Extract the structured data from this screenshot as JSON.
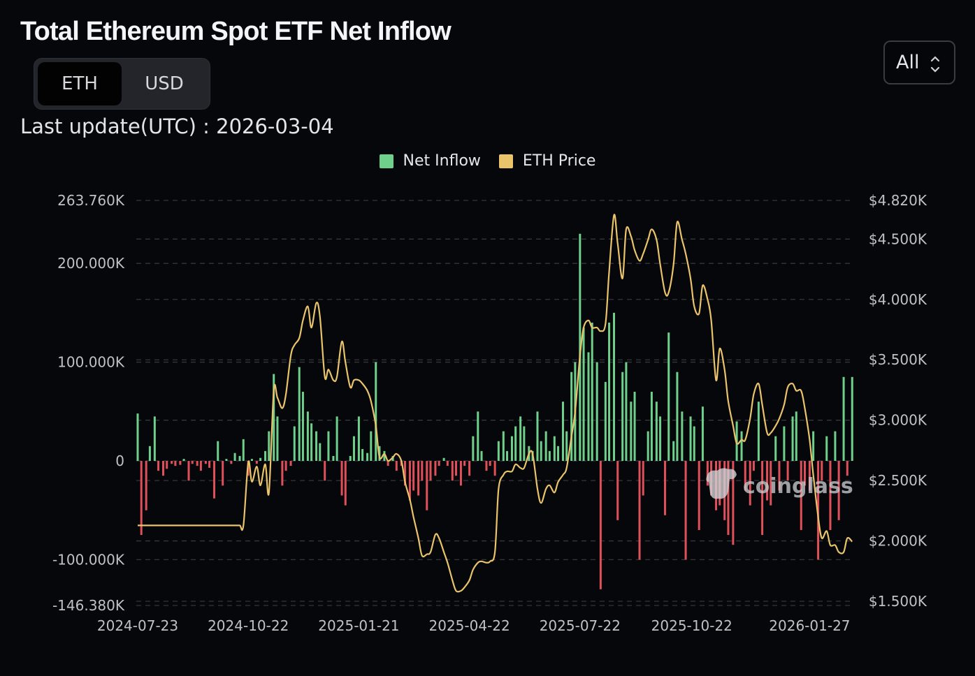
{
  "header": {
    "title": "Total Ethereum Spot ETF Net Inflow",
    "unit_toggle": [
      {
        "label": "ETH",
        "active": true
      },
      {
        "label": "USD",
        "active": false
      }
    ],
    "last_update_label": "Last update(UTC) : 2026-03-04",
    "range_select": {
      "value": "All",
      "icon": "chevron-up-down-icon"
    }
  },
  "watermark": "coinglass",
  "chart_data": {
    "type": "bar+line",
    "legend": [
      {
        "name": "Net Inflow",
        "color": "#6fd08c"
      },
      {
        "name": "ETH Price",
        "color": "#e9c46a"
      }
    ],
    "legend_position": "top",
    "negative_color": "#e0505a",
    "grid": true,
    "x_ticks": [
      "2024-07-23",
      "2024-10-22",
      "2025-01-21",
      "2025-04-22",
      "2025-07-22",
      "2025-10-22",
      "2026-01-27"
    ],
    "x_range": [
      "2024-07-23",
      "2026-03-04"
    ],
    "y_left": {
      "ticks": [
        263760,
        200000,
        100000,
        0,
        -100000,
        -146380
      ],
      "tick_labels": [
        "263.760K",
        "200.000K",
        "100.000K",
        "0",
        "-100.000K",
        "-146.380K"
      ],
      "range": [
        -146380,
        263760
      ]
    },
    "y_right": {
      "ticks": [
        4820,
        4500,
        4000,
        3500,
        3000,
        2500,
        2000,
        1500
      ],
      "tick_labels": [
        "$4.820K",
        "$4.500K",
        "$4.000K",
        "$3.500K",
        "$3.000K",
        "$2.500K",
        "$2.000K",
        "$1.500K"
      ],
      "range": [
        1500,
        4820
      ]
    },
    "dates": [
      "2024-07-23",
      "2024-07-26",
      "2024-07-30",
      "2024-08-02",
      "2024-08-06",
      "2024-08-09",
      "2024-08-13",
      "2024-08-16",
      "2024-08-20",
      "2024-08-23",
      "2024-08-27",
      "2024-08-30",
      "2024-09-03",
      "2024-09-06",
      "2024-09-10",
      "2024-09-13",
      "2024-09-17",
      "2024-09-20",
      "2024-09-24",
      "2024-09-27",
      "2024-10-01",
      "2024-10-04",
      "2024-10-08",
      "2024-10-11",
      "2024-10-15",
      "2024-10-18",
      "2024-10-22",
      "2024-10-25",
      "2024-10-29",
      "2024-11-01",
      "2024-11-05",
      "2024-11-08",
      "2024-11-12",
      "2024-11-15",
      "2024-11-19",
      "2024-11-22",
      "2024-11-26",
      "2024-11-29",
      "2024-12-03",
      "2024-12-06",
      "2024-12-10",
      "2024-12-13",
      "2024-12-17",
      "2024-12-20",
      "2024-12-24",
      "2024-12-27",
      "2024-12-31",
      "2025-01-03",
      "2025-01-07",
      "2025-01-10",
      "2025-01-14",
      "2025-01-17",
      "2025-01-21",
      "2025-01-24",
      "2025-01-28",
      "2025-01-31",
      "2025-02-04",
      "2025-02-07",
      "2025-02-11",
      "2025-02-14",
      "2025-02-18",
      "2025-02-21",
      "2025-02-25",
      "2025-02-28",
      "2025-03-04",
      "2025-03-07",
      "2025-03-11",
      "2025-03-14",
      "2025-03-18",
      "2025-03-21",
      "2025-03-25",
      "2025-03-28",
      "2025-04-01",
      "2025-04-04",
      "2025-04-08",
      "2025-04-11",
      "2025-04-15",
      "2025-04-18",
      "2025-04-22",
      "2025-04-25",
      "2025-04-29",
      "2025-05-02",
      "2025-05-06",
      "2025-05-09",
      "2025-05-13",
      "2025-05-16",
      "2025-05-20",
      "2025-05-23",
      "2025-05-27",
      "2025-05-30",
      "2025-06-03",
      "2025-06-06",
      "2025-06-10",
      "2025-06-13",
      "2025-06-17",
      "2025-06-20",
      "2025-06-24",
      "2025-06-27",
      "2025-07-01",
      "2025-07-04",
      "2025-07-08",
      "2025-07-11",
      "2025-07-15",
      "2025-07-18",
      "2025-07-22",
      "2025-07-25",
      "2025-07-29",
      "2025-08-01",
      "2025-08-05",
      "2025-08-08",
      "2025-08-12",
      "2025-08-15",
      "2025-08-19",
      "2025-08-22",
      "2025-08-26",
      "2025-08-29",
      "2025-09-02",
      "2025-09-05",
      "2025-09-09",
      "2025-09-12",
      "2025-09-16",
      "2025-09-19",
      "2025-09-23",
      "2025-09-26",
      "2025-09-30",
      "2025-10-03",
      "2025-10-07",
      "2025-10-10",
      "2025-10-14",
      "2025-10-17",
      "2025-10-21",
      "2025-10-24",
      "2025-10-28",
      "2025-10-31",
      "2025-11-04",
      "2025-11-07",
      "2025-11-11",
      "2025-11-14",
      "2025-11-18",
      "2025-11-21",
      "2025-11-25",
      "2025-11-28",
      "2025-12-02",
      "2025-12-05",
      "2025-12-09",
      "2025-12-12",
      "2025-12-16",
      "2025-12-19",
      "2025-12-23",
      "2025-12-26",
      "2025-12-30",
      "2026-01-02",
      "2026-01-06",
      "2026-01-09",
      "2026-01-13",
      "2026-01-16",
      "2026-01-20",
      "2026-01-23",
      "2026-01-27",
      "2026-01-30",
      "2026-02-03",
      "2026-02-06",
      "2026-02-10",
      "2026-02-13",
      "2026-02-17",
      "2026-02-20",
      "2026-02-24",
      "2026-02-27",
      "2026-03-03"
    ],
    "series": [
      {
        "name": "Net Inflow",
        "type": "bar",
        "axis": "left",
        "values": [
          48000,
          -75000,
          -50000,
          15000,
          45000,
          -10000,
          -15000,
          -8000,
          -3000,
          -5000,
          -4000,
          2000,
          -20000,
          -3000,
          -5000,
          -10000,
          -3000,
          -7000,
          -38000,
          20000,
          -25000,
          2000,
          -3000,
          8000,
          5000,
          22000,
          -15000,
          2000,
          -3000,
          3000,
          10000,
          30000,
          88000,
          45000,
          -25000,
          -10000,
          -5000,
          35000,
          95000,
          70000,
          50000,
          38000,
          30000,
          18000,
          -20000,
          30000,
          5000,
          45000,
          -35000,
          -45000,
          5000,
          25000,
          45000,
          12000,
          8000,
          30000,
          100000,
          15000,
          10000,
          -5000,
          5000,
          -10000,
          -5000,
          -25000,
          -40000,
          -30000,
          -35000,
          -20000,
          -50000,
          -20000,
          -15000,
          -5000,
          3000,
          -5000,
          -20000,
          -15000,
          -25000,
          -5000,
          -15000,
          25000,
          50000,
          10000,
          -10000,
          -5000,
          -15000,
          20000,
          30000,
          10000,
          25000,
          35000,
          45000,
          35000,
          15000,
          10000,
          50000,
          20000,
          30000,
          10000,
          25000,
          15000,
          60000,
          30000,
          90000,
          100000,
          230000,
          135000,
          110000,
          140000,
          100000,
          -130000,
          80000,
          140000,
          150000,
          -60000,
          90000,
          100000,
          60000,
          70000,
          -100000,
          -35000,
          30000,
          70000,
          60000,
          45000,
          -55000,
          130000,
          20000,
          90000,
          50000,
          -100000,
          45000,
          35000,
          -70000,
          55000,
          -25000,
          -35000,
          -50000,
          -45000,
          -60000,
          -75000,
          -85000,
          40000,
          30000,
          -30000,
          -45000,
          -10000,
          60000,
          -75000,
          -40000,
          -45000,
          25000,
          -30000,
          35000,
          -20000,
          45000,
          50000,
          -70000,
          -25000,
          -30000,
          30000,
          -100000,
          -20000,
          25000,
          -70000,
          30000,
          -60000,
          85000,
          -15000,
          85000
        ]
      },
      {
        "name": "ETH Price",
        "type": "line",
        "axis": "right",
        "values": [
          2128,
          2128,
          2128,
          2128,
          2128,
          2128,
          2128,
          2128,
          2128,
          2128,
          2128,
          2128,
          2128,
          2128,
          2128,
          2128,
          2128,
          2128,
          2128,
          2128,
          2128,
          2128,
          2128,
          2128,
          2128,
          2128,
          2650,
          2490,
          2616,
          2460,
          2634,
          2400,
          3244,
          3186,
          3099,
          3215,
          3535,
          3622,
          3680,
          3826,
          3942,
          3767,
          3971,
          3855,
          3360,
          3419,
          3331,
          3360,
          3651,
          3477,
          3273,
          3331,
          3331,
          3302,
          3244,
          3157,
          2953,
          2692,
          2721,
          2663,
          2692,
          2721,
          2663,
          2488,
          2343,
          2198,
          2023,
          1878,
          1890,
          1907,
          2052,
          2023,
          1907,
          1820,
          1674,
          1587,
          1587,
          1616,
          1674,
          1762,
          1820,
          1831,
          1820,
          1831,
          1907,
          2430,
          2547,
          2576,
          2576,
          2634,
          2605,
          2605,
          2721,
          2721,
          2430,
          2314,
          2430,
          2460,
          2401,
          2488,
          2547,
          2605,
          2866,
          3070,
          3535,
          3767,
          3826,
          3767,
          3767,
          3738,
          3797,
          4233,
          4698,
          4465,
          4174,
          4581,
          4523,
          4407,
          4320,
          4378,
          4494,
          4581,
          4494,
          4291,
          4058,
          4058,
          4291,
          4640,
          4494,
          4378,
          4174,
          3942,
          3884,
          4116,
          4000,
          3826,
          3331,
          3593,
          3419,
          3157,
          2953,
          2808,
          2837,
          2837,
          3012,
          3215,
          3302,
          3128,
          2895,
          2895,
          2953,
          3012,
          3128,
          3273,
          3302,
          3244,
          3244,
          3099,
          2837,
          2547,
          2198,
          2023,
          2081,
          1965,
          1965,
          1907,
          1907,
          2023,
          1994
        ]
      }
    ]
  }
}
